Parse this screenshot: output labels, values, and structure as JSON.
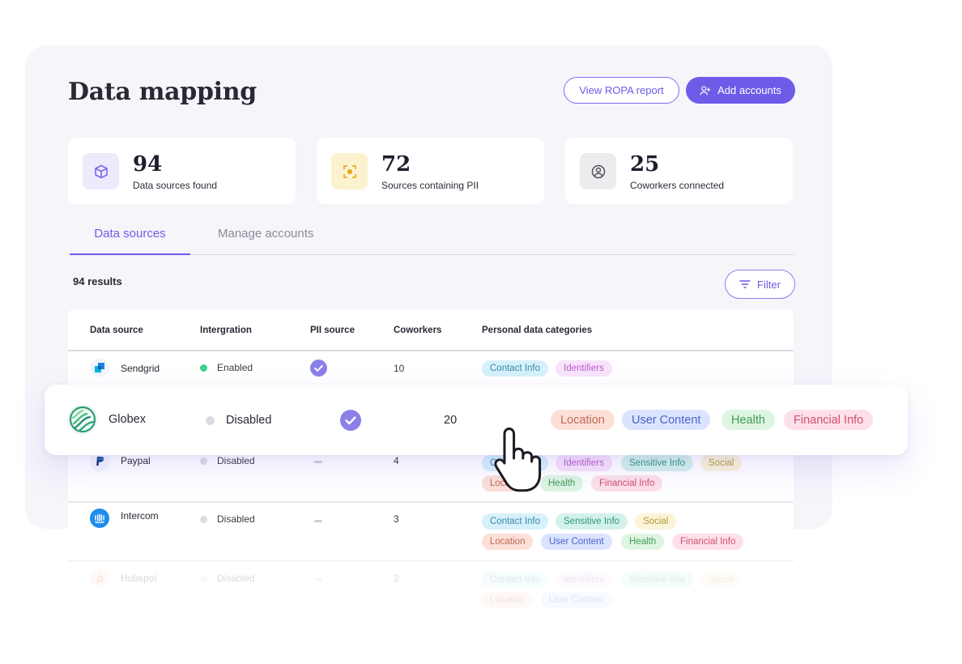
{
  "header": {
    "title": "Data mapping",
    "view_report_label": "View ROPA report",
    "add_accounts_label": "Add accounts"
  },
  "stats": [
    {
      "value": "94",
      "label": "Data sources found",
      "icon": "cube-icon"
    },
    {
      "value": "72",
      "label": "Sources containing PII",
      "icon": "scan-focus-icon"
    },
    {
      "value": "25",
      "label": "Coworkers connected",
      "icon": "user-circle-icon"
    }
  ],
  "tabs": [
    {
      "label": "Data sources",
      "active": true
    },
    {
      "label": "Manage accounts",
      "active": false
    }
  ],
  "results_label": "94 results",
  "filter_label": "Filter",
  "table": {
    "columns": [
      "Data source",
      "Intergration",
      "PII source",
      "Coworkers",
      "Personal data categories"
    ],
    "rows": [
      {
        "name": "Sendgrid",
        "integration": "Enabled",
        "pii": true,
        "coworkers": "10",
        "categories": [
          "Contact Info",
          "Identifiers"
        ]
      },
      {
        "name": "Paypal",
        "integration": "Disabled",
        "pii": false,
        "coworkers": "4",
        "categories": [
          "Contact Info",
          "Identifiers",
          "Sensitive Info",
          "Social",
          "Location",
          "Health",
          "Financial Info"
        ]
      },
      {
        "name": "Intercom",
        "integration": "Disabled",
        "pii": false,
        "coworkers": "3",
        "categories": [
          "Contact Info",
          "Sensitive Info",
          "Social",
          "Location",
          "User Content",
          "Health",
          "Financial Info"
        ]
      },
      {
        "name": "Hubspot",
        "integration": "Disabled",
        "pii": false,
        "coworkers": "2",
        "categories": [
          "Contact Info",
          "Identifiers",
          "Sensitive Info",
          "Social",
          "Location",
          "User Content"
        ]
      }
    ]
  },
  "highlighted_row": {
    "name": "Globex",
    "integration": "Disabled",
    "pii": true,
    "coworkers": "20",
    "categories": [
      "Location",
      "User Content",
      "Health",
      "Financial Info"
    ]
  },
  "colors": {
    "accent": "#6e5ce8",
    "enabled_dot": "#3fcf8e",
    "disabled_dot": "#dcdbe2"
  }
}
